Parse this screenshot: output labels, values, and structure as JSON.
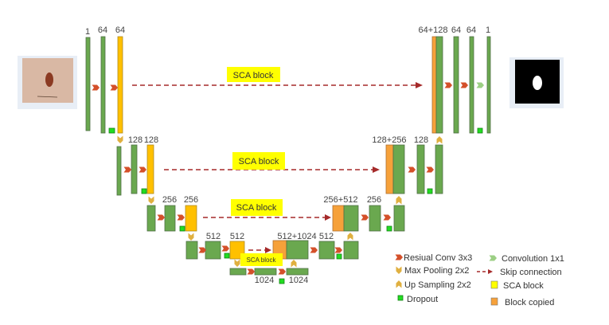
{
  "level1": {
    "enc_labels": [
      "1",
      "64",
      "64"
    ],
    "dec_labels": [
      "64+128",
      "64",
      "64",
      "1"
    ],
    "sca": "SCA block"
  },
  "level2": {
    "enc_labels": [
      "128",
      "128"
    ],
    "dec_labels": [
      "128+256",
      "128"
    ],
    "sca": "SCA block"
  },
  "level3": {
    "enc_labels": [
      "256",
      "256"
    ],
    "dec_labels": [
      "256+512",
      "256"
    ],
    "sca": "SCA block"
  },
  "level4": {
    "enc_labels": [
      "512",
      "512"
    ],
    "dec_labels": [
      "512+1024",
      "512"
    ],
    "sca": "SCA block"
  },
  "bottleneck": {
    "labels": [
      "1024",
      "1024"
    ]
  },
  "legend": {
    "residual_conv": "Resiual Conv 3x3",
    "max_pooling": "Max Pooling 2x2",
    "up_sampling": "Up Sampling 2x2",
    "dropout": "Dropout",
    "conv1x1": "Convolution 1x1",
    "skip": "Skip connection",
    "sca_block": "SCA block",
    "block_copied": "Block copied"
  },
  "colors": {
    "conv": "#6aa84f",
    "sca": "#ffc000",
    "copied": "#f6a13a",
    "dropout": "#22dd22",
    "skip": "#a52a2a",
    "sca_label_bg": "#ffff00"
  }
}
